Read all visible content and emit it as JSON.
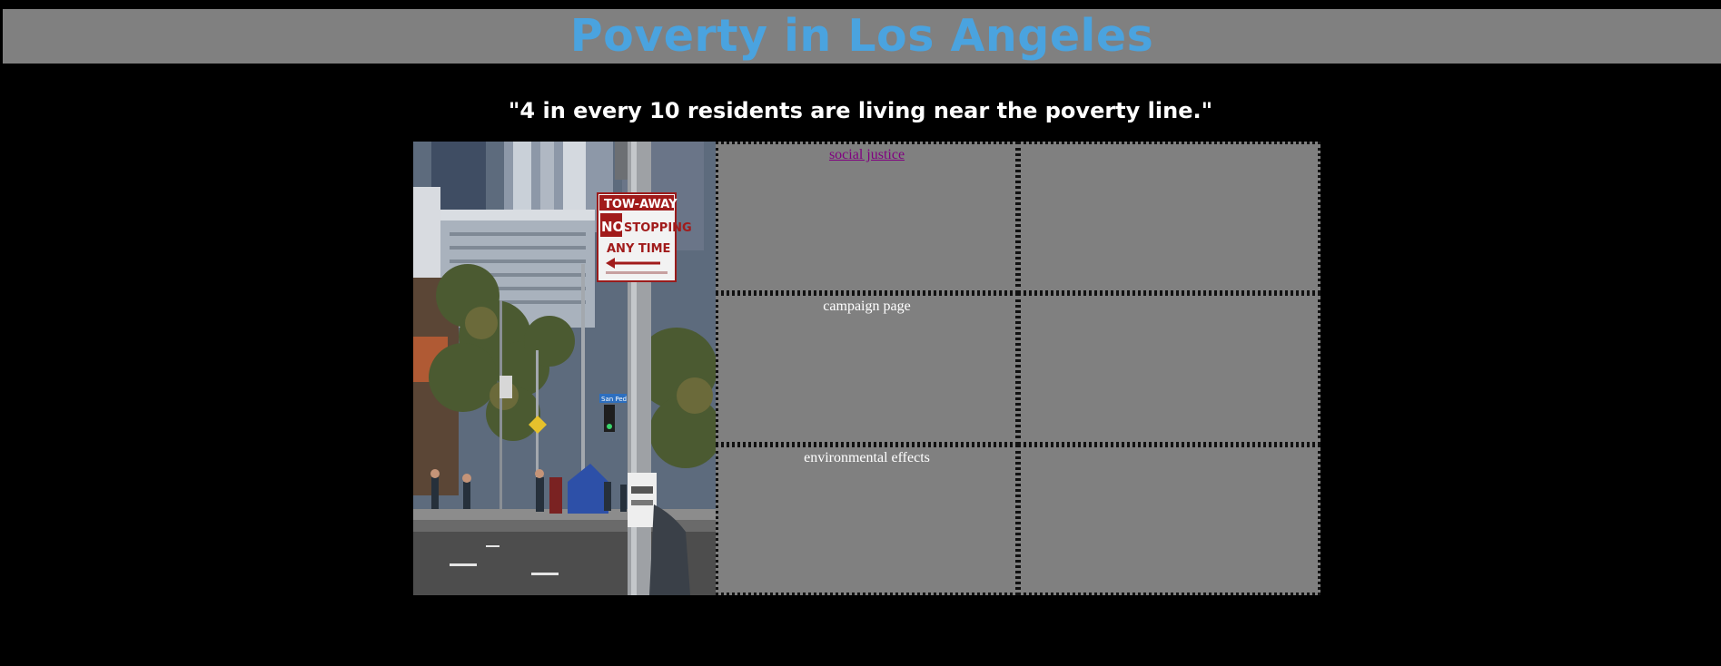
{
  "header": {
    "title": "Poverty in Los Angeles"
  },
  "quote": "\"4 in every 10 residents are living near the poverty line.\"",
  "photo": {
    "sign_line1": "TOW-AWAY",
    "sign_line2_no": "NO",
    "sign_line2_rest": "STOPPING",
    "sign_line3": "ANY TIME",
    "street_sign": "San Ped"
  },
  "links": {
    "social_justice": "social justice",
    "campaign_page": "campaign page",
    "environmental_effects": "environmental effects"
  },
  "colors": {
    "background": "#000000",
    "header_bar": "#808080",
    "title": "#4aa3df",
    "cell": "#808080",
    "visited_link": "#800080"
  }
}
